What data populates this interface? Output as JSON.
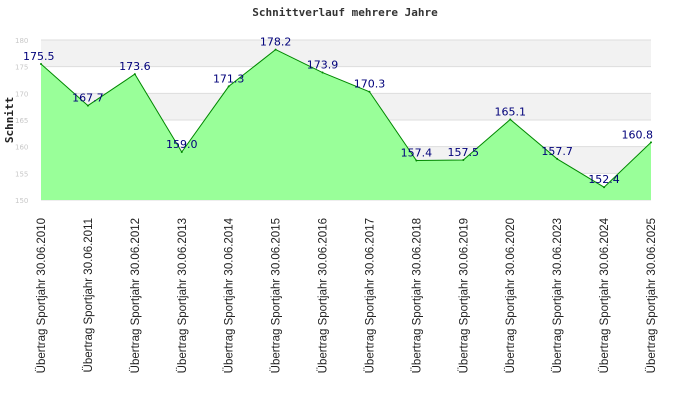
{
  "chart_data": {
    "type": "area",
    "title": "Schnittverlauf mehrere Jahre",
    "xlabel": "",
    "ylabel": "Schnitt",
    "ylim": [
      150,
      180
    ],
    "yticks": [
      150,
      155,
      160,
      165,
      170,
      175,
      180
    ],
    "grid": true,
    "categories": [
      "Übertrag Sportjahr 30.06.2010",
      "Übertrag Sportjahr 30.06.2011",
      "Übertrag Sportjahr 30.06.2012",
      "Übertrag Sportjahr 30.06.2013",
      "Übertrag Sportjahr 30.06.2014",
      "Übertrag Sportjahr 30.06.2015",
      "Übertrag Sportjahr 30.06.2016",
      "Übertrag Sportjahr 30.06.2017",
      "Übertrag Sportjahr 30.06.2018",
      "Übertrag Sportjahr 30.06.2019",
      "Übertrag Sportjahr 30.06.2020",
      "Übertrag Sportjahr 30.06.2023",
      "Übertrag Sportjahr 30.06.2024",
      "Übertrag Sportjahr 30.06.2025"
    ],
    "values": [
      175.5,
      167.7,
      173.6,
      159.0,
      171.3,
      178.2,
      173.9,
      170.3,
      157.4,
      157.5,
      165.1,
      157.7,
      152.4,
      160.8
    ],
    "data_labels": [
      "175.5",
      "167.7",
      "173.6",
      "159.0",
      "171.3",
      "178.2",
      "173.9",
      "170.3",
      "157.4",
      "157.5",
      "165.1",
      "157.7",
      "152.4",
      "160.8"
    ],
    "colors": {
      "fill": "#99ff99",
      "line": "#008800",
      "band": "#f2f2f2",
      "label": "#00007a"
    }
  }
}
